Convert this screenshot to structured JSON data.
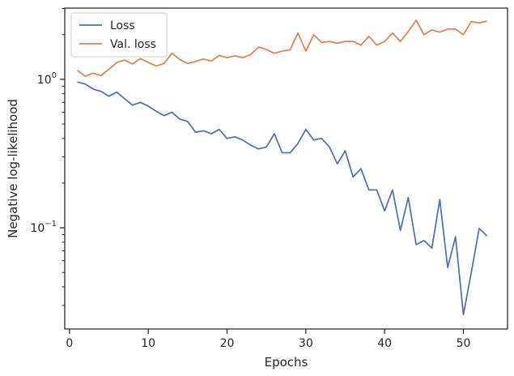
{
  "chart_data": {
    "type": "line",
    "xlabel": "Epochs",
    "ylabel": "Negative log-likelihood",
    "yscale": "log",
    "xlim": [
      -0.6,
      55.6
    ],
    "ylim": [
      0.0208,
      3.02
    ],
    "xticks": [
      0,
      10,
      20,
      30,
      40,
      50
    ],
    "yticks_major": [
      {
        "value": 1.0,
        "base": "10",
        "exp": "0"
      },
      {
        "value": 0.1,
        "base": "10",
        "exp": "−1"
      }
    ],
    "legend": {
      "position": "upper-left"
    },
    "grid": false,
    "x": [
      1,
      2,
      3,
      4,
      5,
      6,
      7,
      8,
      9,
      10,
      11,
      12,
      13,
      14,
      15,
      16,
      17,
      18,
      19,
      20,
      21,
      22,
      23,
      24,
      25,
      26,
      27,
      28,
      29,
      30,
      31,
      32,
      33,
      34,
      35,
      36,
      37,
      38,
      39,
      40,
      41,
      42,
      43,
      44,
      45,
      46,
      47,
      48,
      49,
      50,
      51,
      52,
      53
    ],
    "series": [
      {
        "name": "Loss",
        "color": "#4c72b0",
        "values": [
          0.96,
          0.93,
          0.86,
          0.83,
          0.77,
          0.82,
          0.74,
          0.67,
          0.7,
          0.66,
          0.61,
          0.57,
          0.6,
          0.54,
          0.52,
          0.44,
          0.45,
          0.43,
          0.46,
          0.4,
          0.41,
          0.39,
          0.36,
          0.34,
          0.35,
          0.43,
          0.32,
          0.32,
          0.37,
          0.46,
          0.39,
          0.4,
          0.35,
          0.27,
          0.33,
          0.22,
          0.25,
          0.18,
          0.18,
          0.13,
          0.18,
          0.096,
          0.16,
          0.077,
          0.082,
          0.073,
          0.155,
          0.054,
          0.087,
          0.026,
          0.05,
          0.099,
          0.088
        ]
      },
      {
        "name": "Val. loss",
        "color": "#dd8452",
        "values": [
          1.15,
          1.05,
          1.1,
          1.06,
          1.17,
          1.3,
          1.35,
          1.27,
          1.38,
          1.3,
          1.23,
          1.28,
          1.5,
          1.36,
          1.28,
          1.32,
          1.37,
          1.33,
          1.45,
          1.4,
          1.44,
          1.4,
          1.47,
          1.65,
          1.59,
          1.5,
          1.55,
          1.58,
          2.05,
          1.55,
          2.0,
          1.77,
          1.8,
          1.75,
          1.8,
          1.8,
          1.7,
          1.95,
          1.7,
          1.8,
          2.05,
          1.8,
          2.1,
          2.5,
          2.0,
          2.15,
          2.08,
          2.18,
          2.18,
          2.0,
          2.45,
          2.4,
          2.47
        ]
      }
    ]
  }
}
